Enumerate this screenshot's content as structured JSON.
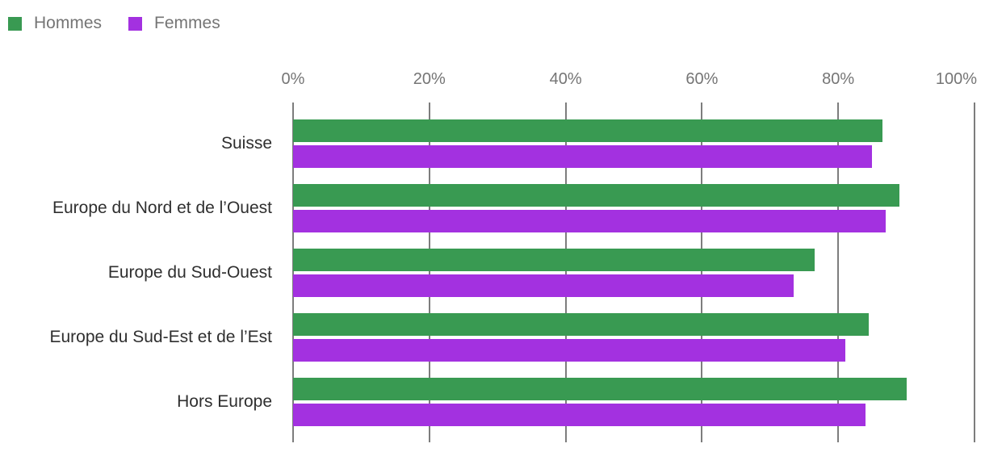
{
  "chart_data": {
    "type": "bar",
    "orientation": "horizontal",
    "title": "",
    "categories": [
      "Suisse",
      "Europe du Nord et de l’Ouest",
      "Europe du Sud-Ouest",
      "Europe du Sud-Est et de l’Est",
      "Hors Europe"
    ],
    "series": [
      {
        "name": "Hommes",
        "color": "#399A52",
        "values": [
          86.5,
          89,
          76.5,
          84.5,
          90
        ]
      },
      {
        "name": "Femmes",
        "color": "#A331E0",
        "values": [
          85,
          87,
          73.5,
          81,
          84
        ]
      }
    ],
    "xlabel": "",
    "ylabel": "",
    "xlim": [
      0,
      100
    ],
    "x_ticks": [
      "0%",
      "20%",
      "40%",
      "60%",
      "80%",
      "100%"
    ],
    "x_tick_values": [
      0,
      20,
      40,
      60,
      80,
      100
    ],
    "grid": true,
    "gridline_color": "#7d7d7d",
    "axis_label_color": "#757575",
    "category_label_color": "#2f2f2f",
    "legend_position": "top-left",
    "background_color": "#ffffff"
  }
}
